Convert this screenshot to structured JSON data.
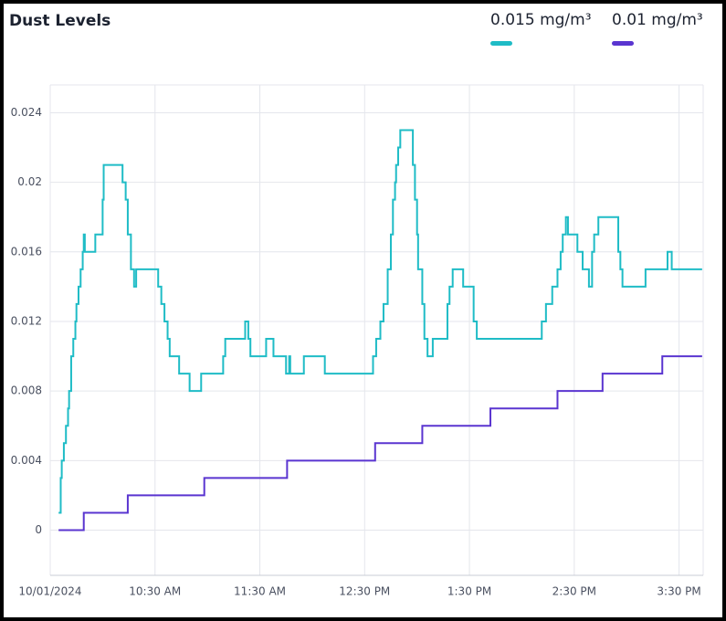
{
  "chart_data": {
    "type": "line",
    "step": true,
    "title": "Dust Levels",
    "grid": true,
    "legend": "top-right",
    "xlim": [
      9.5,
      15.73
    ],
    "xticks": [
      {
        "value": 9.5,
        "label": "10/01/2024"
      },
      {
        "value": 10.5,
        "label": "10:30 AM"
      },
      {
        "value": 11.5,
        "label": "11:30 AM"
      },
      {
        "value": 12.5,
        "label": "12:30 PM"
      },
      {
        "value": 13.5,
        "label": "1:30 PM"
      },
      {
        "value": 14.5,
        "label": "2:30 PM"
      },
      {
        "value": 15.5,
        "label": "3:30 PM"
      }
    ],
    "ylim": [
      -0.0026,
      0.0256
    ],
    "yticks": [
      0,
      0.004,
      0.008,
      0.012,
      0.016,
      0.02,
      0.024
    ],
    "series": [
      {
        "name": "0.015 mg/m³",
        "color": "#1fbcc6",
        "x": [
          9.58,
          9.6,
          9.61,
          9.63,
          9.65,
          9.67,
          9.68,
          9.7,
          9.72,
          9.74,
          9.75,
          9.77,
          9.79,
          9.81,
          9.82,
          9.83,
          9.93,
          10.0,
          10.01,
          10.19,
          10.22,
          10.24,
          10.27,
          10.3,
          10.32,
          10.53,
          10.56,
          10.59,
          10.62,
          10.64,
          10.73,
          10.83,
          10.94,
          11.15,
          11.17,
          11.36,
          11.39,
          11.41,
          11.56,
          11.63,
          11.75,
          11.78,
          11.79,
          11.92,
          12.12,
          12.58,
          12.61,
          12.65,
          12.68,
          12.72,
          12.75,
          12.77,
          12.79,
          12.8,
          12.82,
          12.84,
          12.96,
          12.98,
          13.0,
          13.01,
          13.05,
          13.07,
          13.1,
          13.15,
          13.29,
          13.31,
          13.34,
          13.44,
          13.54,
          13.57,
          14.19,
          14.23,
          14.29,
          14.34,
          14.37,
          14.39,
          14.42,
          14.44,
          14.53,
          14.58,
          14.64,
          14.67,
          14.69,
          14.73,
          14.92,
          14.94,
          14.96,
          15.18,
          15.39,
          15.43,
          15.72
        ],
        "values": [
          0.001,
          0.003,
          0.004,
          0.005,
          0.006,
          0.007,
          0.008,
          0.01,
          0.011,
          0.012,
          0.013,
          0.014,
          0.015,
          0.016,
          0.017,
          0.016,
          0.017,
          0.019,
          0.021,
          0.02,
          0.019,
          0.017,
          0.015,
          0.014,
          0.015,
          0.014,
          0.013,
          0.012,
          0.011,
          0.01,
          0.009,
          0.008,
          0.009,
          0.01,
          0.011,
          0.012,
          0.011,
          0.01,
          0.011,
          0.01,
          0.009,
          0.01,
          0.009,
          0.01,
          0.009,
          0.01,
          0.011,
          0.012,
          0.013,
          0.015,
          0.017,
          0.019,
          0.02,
          0.021,
          0.022,
          0.023,
          0.021,
          0.019,
          0.017,
          0.015,
          0.013,
          0.011,
          0.01,
          0.011,
          0.013,
          0.014,
          0.015,
          0.014,
          0.012,
          0.011,
          0.012,
          0.013,
          0.014,
          0.015,
          0.016,
          0.017,
          0.018,
          0.017,
          0.016,
          0.015,
          0.014,
          0.016,
          0.017,
          0.018,
          0.016,
          0.015,
          0.014,
          0.015,
          0.016,
          0.015,
          0.015
        ]
      },
      {
        "name": "0.01 mg/m³",
        "color": "#5a35d0",
        "x": [
          9.58,
          9.82,
          10.24,
          10.97,
          11.76,
          12.6,
          13.05,
          13.7,
          14.34,
          14.77,
          15.34,
          15.72
        ],
        "values": [
          0,
          0.001,
          0.002,
          0.003,
          0.004,
          0.005,
          0.006,
          0.007,
          0.008,
          0.009,
          0.01,
          0.01
        ]
      }
    ]
  }
}
